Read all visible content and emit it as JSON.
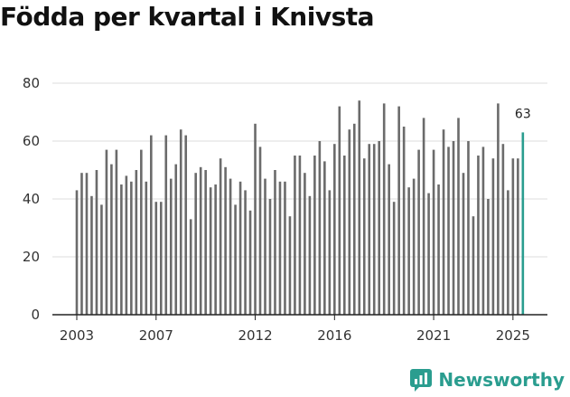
{
  "title": "Födda per kvartal i Knivsta",
  "brand": {
    "name": "Newsworthy",
    "icon": "newsworthy-logo-icon",
    "color": "#2a9d8f"
  },
  "colors": {
    "bar": "#6b6b6b",
    "highlight": "#2a9d8f",
    "grid": "#dddddd",
    "axis": "#222222"
  },
  "chart_data": {
    "type": "bar",
    "title": "Födda per kvartal i Knivsta",
    "xlabel": "",
    "ylabel": "",
    "ylim": [
      0,
      80
    ],
    "yticks": [
      0,
      20,
      40,
      60,
      80
    ],
    "grid": true,
    "start": {
      "year": 2003,
      "quarter": 1
    },
    "xticks": [
      {
        "label": "2003",
        "year": 2003
      },
      {
        "label": "2007",
        "year": 2007
      },
      {
        "label": "2012",
        "year": 2012
      },
      {
        "label": "2016",
        "year": 2016
      },
      {
        "label": "2021",
        "year": 2021
      },
      {
        "label": "2025",
        "year": 2025
      }
    ],
    "values": [
      43,
      49,
      49,
      41,
      50,
      38,
      57,
      52,
      57,
      45,
      48,
      46,
      50,
      57,
      46,
      62,
      39,
      39,
      62,
      47,
      52,
      64,
      62,
      33,
      49,
      51,
      50,
      44,
      45,
      54,
      51,
      47,
      38,
      46,
      43,
      36,
      66,
      58,
      47,
      40,
      50,
      46,
      46,
      34,
      55,
      55,
      49,
      41,
      55,
      60,
      53,
      43,
      59,
      72,
      55,
      64,
      66,
      74,
      54,
      59,
      59,
      60,
      73,
      52,
      39,
      72,
      65,
      44,
      47,
      57,
      68,
      42,
      57,
      45,
      64,
      58,
      60,
      68,
      49,
      60,
      34,
      55,
      58,
      40,
      54,
      73,
      59,
      43,
      54,
      54,
      63
    ],
    "highlight": {
      "index": 90,
      "label": "63"
    }
  }
}
